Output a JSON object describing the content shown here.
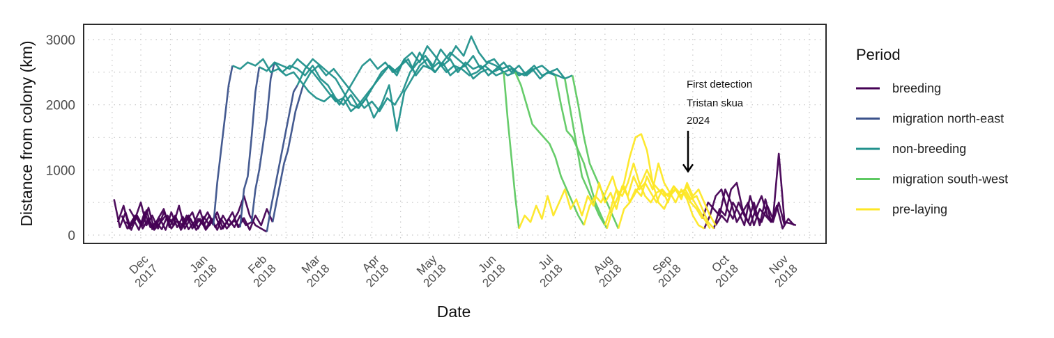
{
  "chart_data": {
    "type": "line",
    "title": "",
    "xlabel": "Date",
    "ylabel": "Distance from colony (km)",
    "x_units": "days since 2017-12-01",
    "ylim": [
      -130,
      3230
    ],
    "xlim": [
      -30,
      360
    ],
    "grid": true,
    "yticks": [
      {
        "value": 0,
        "label": "0"
      },
      {
        "value": 1000,
        "label": "1000"
      },
      {
        "value": 2000,
        "label": "2000"
      },
      {
        "value": 3000,
        "label": "3000"
      }
    ],
    "xticks": [
      {
        "day": 0,
        "month": "Dec",
        "year": "2017"
      },
      {
        "day": 31,
        "month": "Jan",
        "year": "2018"
      },
      {
        "day": 62,
        "month": "Feb",
        "year": "2018"
      },
      {
        "day": 90,
        "month": "Mar",
        "year": "2018"
      },
      {
        "day": 121,
        "month": "Apr",
        "year": "2018"
      },
      {
        "day": 151,
        "month": "May",
        "year": "2018"
      },
      {
        "day": 182,
        "month": "Jun",
        "year": "2018"
      },
      {
        "day": 212,
        "month": "Jul",
        "year": "2018"
      },
      {
        "day": 243,
        "month": "Aug",
        "year": "2018"
      },
      {
        "day": 274,
        "month": "Sep",
        "year": "2018"
      },
      {
        "day": 304,
        "month": "Oct",
        "year": "2018"
      },
      {
        "day": 335,
        "month": "Nov",
        "year": "2018"
      }
    ],
    "legend": {
      "title": "Period",
      "placement": "right",
      "items": [
        {
          "key": "breeding",
          "label": "breeding",
          "color": "#440154"
        },
        {
          "key": "migNE",
          "label": "migration north-east",
          "color": "#3b528b"
        },
        {
          "key": "nonbreeding",
          "label": "non-breeding",
          "color": "#21918c"
        },
        {
          "key": "migSW",
          "label": "migration south-west",
          "color": "#5ec962"
        },
        {
          "key": "prelaying",
          "label": "pre-laying",
          "color": "#fde725"
        }
      ]
    },
    "annotation": {
      "lines": [
        "First detection",
        "Tristan skua",
        "2024"
      ],
      "day": 285,
      "arrow_from_km": 1600,
      "arrow_to_km": 1000
    },
    "tracks": [
      {
        "segments": [
          {
            "period": "breeding",
            "start": -14,
            "step": 3,
            "km": [
              550,
              120,
              350,
              80,
              300,
              150,
              420,
              100,
              250,
              80,
              350,
              120,
              280,
              90,
              200,
              380,
              100,
              250,
              80,
              300,
              150,
              220,
              120
            ]
          },
          {
            "period": "migNE",
            "start": 52,
            "step": 2,
            "km": [
              120,
              700,
              900,
              1500,
              2200,
              2580
            ]
          },
          {
            "period": "nonbreeding",
            "start": 62,
            "step": 4,
            "km": [
              2580,
              2520,
              2650,
              2500,
              2600,
              2550,
              2450,
              2600,
              2400,
              2300,
              2100,
              2000,
              2150,
              1950,
              2100,
              2300,
              2500,
              2600,
              2450,
              2700,
              2550,
              2800,
              2600,
              2500,
              2650,
              2450,
              2550,
              2600,
              2400,
              2500,
              2550,
              2450,
              2500
            ]
          },
          {
            "period": "migSW",
            "start": 190,
            "step": 2,
            "km": [
              2500,
              1800,
              1200,
              600,
              100
            ]
          },
          {
            "period": "prelaying",
            "start": 198,
            "step": 3,
            "km": [
              100,
              300,
              200,
              450,
              250,
              600,
              300,
              500,
              700,
              400,
              550,
              300,
              600,
              450,
              800,
              500,
              650,
              400,
              750,
              600,
              900,
              700,
              800,
              650,
              500,
              700,
              600,
              750,
              650,
              700,
              550,
              600,
              400,
              200,
              100
            ]
          },
          {
            "period": "breeding",
            "start": 300,
            "step": 3,
            "km": [
              100,
              400,
              300,
              700,
              800,
              400,
              200,
              500,
              150,
              550,
              200,
              450,
              100,
              250,
              150
            ]
          }
        ]
      },
      {
        "segments": [
          {
            "period": "breeding",
            "start": -12,
            "step": 3,
            "km": [
              200,
              450,
              100,
              300,
              150,
              380,
              90,
              250,
              400,
              120,
              300,
              80,
              220,
              350,
              100,
              280,
              150,
              300,
              90,
              200,
              350,
              120,
              260,
              80,
              300,
              150,
              400,
              200
            ]
          },
          {
            "period": "migNE",
            "start": 69,
            "step": 2,
            "km": [
              200,
              500,
              800,
              1100,
              1300,
              1600,
              1900,
              2100,
              2300
            ]
          },
          {
            "period": "nonbreeding",
            "start": 85,
            "step": 4,
            "km": [
              2300,
              2500,
              2600,
              2450,
              2550,
              2400,
              2250,
              2100,
              1950,
              2050,
              1900,
              2100,
              2000,
              2200,
              2500,
              2650,
              2750,
              2600,
              2850,
              2700,
              2900,
              2750,
              3050,
              2800,
              2650,
              2700,
              2550,
              2600,
              2500,
              2450,
              2550,
              2400,
              2500,
              2450
            ]
          },
          {
            "period": "migSW",
            "start": 217,
            "step": 3,
            "km": [
              2450,
              2000,
              1600,
              1500,
              1300,
              1100,
              800,
              500,
              300,
              100
            ]
          },
          {
            "period": "prelaying",
            "start": 244,
            "step": 3,
            "km": [
              100,
              400,
              600,
              800,
              1200,
              1500,
              1550,
              1300,
              800,
              500,
              400,
              600,
              700,
              550,
              800,
              600,
              700,
              500,
              300,
              150
            ]
          },
          {
            "period": "breeding",
            "start": 301,
            "step": 3,
            "km": [
              150,
              300,
              200,
              500,
              350,
              150,
              600,
              300,
              200,
              450,
              250,
              1250,
              200,
              180,
              150
            ]
          }
        ]
      },
      {
        "segments": [
          {
            "period": "breeding",
            "start": -10,
            "step": 3,
            "km": [
              300,
              100,
              250,
              80,
              350,
              120,
              200,
              90,
              300,
              150,
              450,
              100,
              250,
              80,
              200,
              350,
              150
            ]
          },
          {
            "period": "migNE",
            "start": 38,
            "step": 2,
            "km": [
              150,
              800,
              1300,
              1800,
              2300,
              2600
            ]
          },
          {
            "period": "nonbreeding",
            "start": 48,
            "step": 4,
            "km": [
              2600,
              2550,
              2650,
              2600,
              2700,
              2500,
              2550,
              2450,
              2500,
              2350,
              2200,
              2100,
              2050,
              2150,
              2000,
              2200,
              2400,
              2600,
              2700,
              2550,
              2650,
              2500,
              2600,
              2700,
              2450,
              2600,
              2550,
              2650,
              2500,
              2600,
              2550,
              2450,
              2500,
              2600,
              2500,
              2550,
              2450,
              2500
            ]
          },
          {
            "period": "migSW",
            "start": 196,
            "step": 3,
            "km": [
              2500,
              2300,
              2000,
              1700,
              1600,
              1500,
              1400,
              1200,
              900,
              700,
              500,
              300,
              150
            ]
          },
          {
            "period": "prelaying",
            "start": 232,
            "step": 3,
            "km": [
              150,
              450,
              600,
              500,
              700,
              900,
              600,
              750,
              500,
              650,
              800,
              1000,
              800,
              700,
              600,
              650,
              500,
              700,
              550,
              300,
              150,
              100
            ]
          },
          {
            "period": "breeding",
            "start": 295,
            "step": 3,
            "km": [
              100,
              300,
              600,
              700,
              400,
              250,
              500,
              300,
              150,
              400,
              600,
              300,
              200,
              500,
              150
            ]
          }
        ]
      },
      {
        "segments": [
          {
            "period": "breeding",
            "start": -8,
            "step": 3,
            "km": [
              200,
              150,
              300,
              100,
              250,
              80,
              180,
              300,
              100,
              220,
              150,
              300,
              120,
              250,
              80,
              200,
              350,
              100,
              250,
              120,
              300,
              150,
              200
            ]
          },
          {
            "period": "migNE",
            "start": 58,
            "step": 2,
            "km": [
              200,
              700,
              1000,
              1400,
              1800,
              2400,
              2650
            ]
          },
          {
            "period": "nonbreeding",
            "start": 70,
            "step": 4,
            "km": [
              2650,
              2600,
              2550,
              2700,
              2600,
              2500,
              2350,
              2200,
              2050,
              2100,
              1900,
              2000,
              2150,
              2300,
              2450,
              2600,
              2500,
              2700,
              2800,
              2650,
              2900,
              2750,
              2600,
              2700,
              2500,
              2650,
              2550,
              2600,
              2450,
              2550,
              2650,
              2500,
              2600,
              2450,
              2550,
              2600,
              2500,
              2450,
              2400
            ]
          },
          {
            "period": "migSW",
            "start": 222,
            "step": 3,
            "km": [
              2400,
              1900,
              1400,
              900,
              700,
              500,
              300,
              150
            ]
          },
          {
            "period": "prelaying",
            "start": 243,
            "step": 3,
            "km": [
              150,
              400,
              700,
              600,
              800,
              1100,
              800,
              600,
              500,
              650,
              700,
              500,
              750,
              600,
              650,
              500,
              400,
              250
            ]
          },
          {
            "period": "breeding",
            "start": 294,
            "step": 3,
            "km": [
              250,
              500,
              400,
              300,
              700,
              500,
              200,
              350,
              500,
              150,
              400,
              300,
              200
            ]
          }
        ]
      },
      {
        "segments": [
          {
            "period": "breeding",
            "start": -6,
            "step": 3,
            "km": [
              400,
              250,
              500,
              150,
              300,
              100,
              350,
              200,
              280,
              120,
              300,
              100,
              250,
              150,
              300,
              120,
              250,
              100,
              200,
              350,
              600,
              300,
              150,
              100,
              50
            ]
          },
          {
            "period": "migNE",
            "start": 66,
            "step": 2,
            "km": [
              50,
              400,
              700,
              1000,
              1300,
              1600,
              1900,
              2200,
              2300
            ]
          },
          {
            "period": "nonbreeding",
            "start": 82,
            "step": 4,
            "km": [
              2300,
              2550,
              2700,
              2600,
              2500,
              2400,
              2200,
              2000,
              1950,
              2100,
              1800,
              2000,
              2300,
              1600,
              2200,
              2400,
              2600,
              2700,
              2500,
              2650,
              2800,
              2700,
              2600,
              2750,
              2550,
              2650,
              2600,
              2500,
              2550,
              2450,
              2500,
              2600,
              2450,
              2500,
              2550,
              2400,
              2450
            ]
          },
          {
            "period": "migSW",
            "start": 226,
            "step": 3,
            "km": [
              2450,
              2000,
              1500,
              1100,
              900,
              700,
              500,
              300,
              100
            ]
          },
          {
            "period": "prelaying",
            "start": 250,
            "step": 3,
            "km": [
              100,
              400,
              500,
              700,
              600,
              900,
              700,
              1100,
              800,
              650,
              700,
              600,
              750,
              550,
              400,
              250,
              100
            ]
          }
        ]
      }
    ]
  }
}
